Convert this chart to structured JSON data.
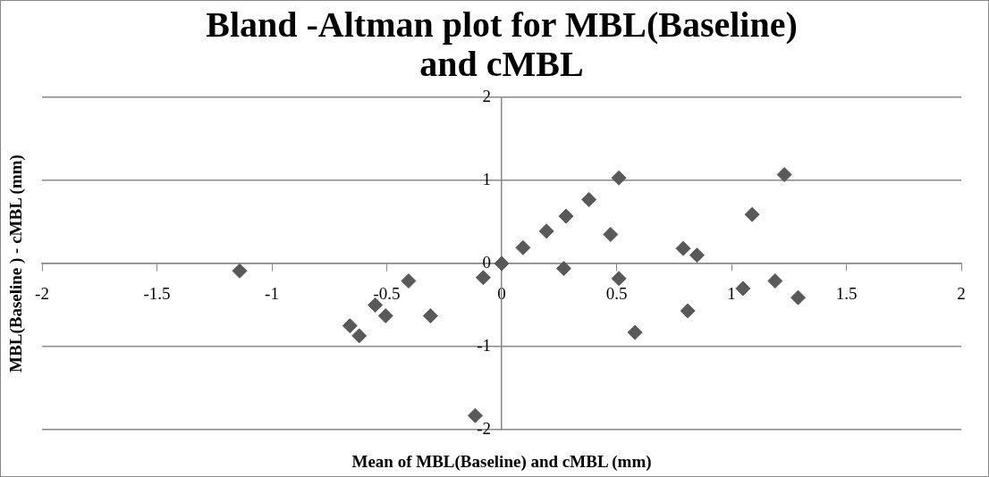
{
  "chart_data": {
    "type": "scatter",
    "title": "Bland -Altman plot for MBL(Baseline)\nand cMBL",
    "xlabel": "Mean of MBL(Baseline) and cMBL (mm)",
    "ylabel": "MBL(Baseline ) - cMBL (mm)",
    "series": [
      {
        "color": "#595959",
        "x": [
          -1.14,
          -0.405,
          -0.31,
          -0.66,
          -0.62,
          -0.55,
          -0.505,
          -0.08,
          0,
          -0.115,
          0.093,
          0.195,
          0.28,
          0.38,
          0.51,
          0.474,
          0.27,
          0.51,
          0.58,
          0.79,
          0.85,
          0.81,
          1.09,
          1.05,
          1.19,
          1.23,
          1.29
        ],
        "values": [
          -0.09,
          -0.21,
          -0.63,
          -0.75,
          -0.87,
          -0.5,
          -0.63,
          -0.17,
          0,
          -1.83,
          0.19,
          0.39,
          0.57,
          0.77,
          1.03,
          0.35,
          -0.06,
          -0.18,
          -0.83,
          0.18,
          0.1,
          -0.57,
          0.59,
          -0.3,
          -0.21,
          1.07,
          -0.41
        ]
      }
    ],
    "xlim": [
      -2,
      2
    ],
    "xticks": [
      -2,
      -1.5,
      -1,
      -0.5,
      0,
      0.5,
      1,
      1.5,
      2
    ],
    "ylim": [
      -2,
      2
    ],
    "yticks": [
      -2,
      -1,
      0,
      1,
      2
    ],
    "grid": "y",
    "legend": false,
    "marker": "diamond"
  }
}
